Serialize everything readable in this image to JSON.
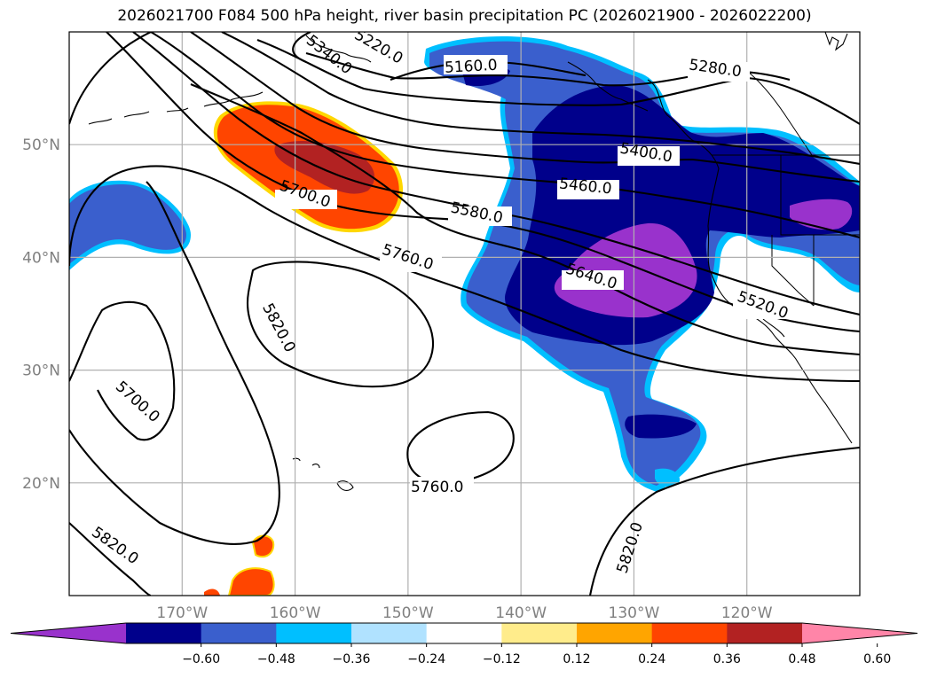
{
  "title": "2026021700 F084 500 hPa height, river basin precipitation PC (2026021900 - 2026022200)",
  "map": {
    "lat_ticks": [
      {
        "label": "50°N",
        "value": 50
      },
      {
        "label": "40°N",
        "value": 40
      },
      {
        "label": "30°N",
        "value": 30
      },
      {
        "label": "20°N",
        "value": 20
      }
    ],
    "lon_ticks": [
      {
        "label": "170°W",
        "value": -170
      },
      {
        "label": "160°W",
        "value": -160
      },
      {
        "label": "150°W",
        "value": -150
      },
      {
        "label": "140°W",
        "value": -140
      },
      {
        "label": "130°W",
        "value": -130
      },
      {
        "label": "120°W",
        "value": -120
      }
    ],
    "extent": {
      "lon": [
        -180,
        -110
      ],
      "lat": [
        10,
        60
      ]
    },
    "contour_labels": [
      "5160.0",
      "5220.0",
      "5280.0",
      "5340.0",
      "5400.0",
      "5460.0",
      "5520.0",
      "5580.0",
      "5640.0",
      "5700.0",
      "5760.0",
      "5820.0"
    ]
  },
  "colorbar": {
    "colors": [
      "#9932cc",
      "#00008b",
      "#3a5fcd",
      "#00bfff",
      "#b0e2ff",
      "#ffffff",
      "#ffec8b",
      "#ffa500",
      "#ff4500",
      "#b22222",
      "#ff85a8"
    ],
    "tick_labels": [
      "−0.60",
      "−0.48",
      "−0.36",
      "−0.24",
      "−0.12",
      "0.12",
      "0.24",
      "0.36",
      "0.48",
      "0.60"
    ]
  }
}
